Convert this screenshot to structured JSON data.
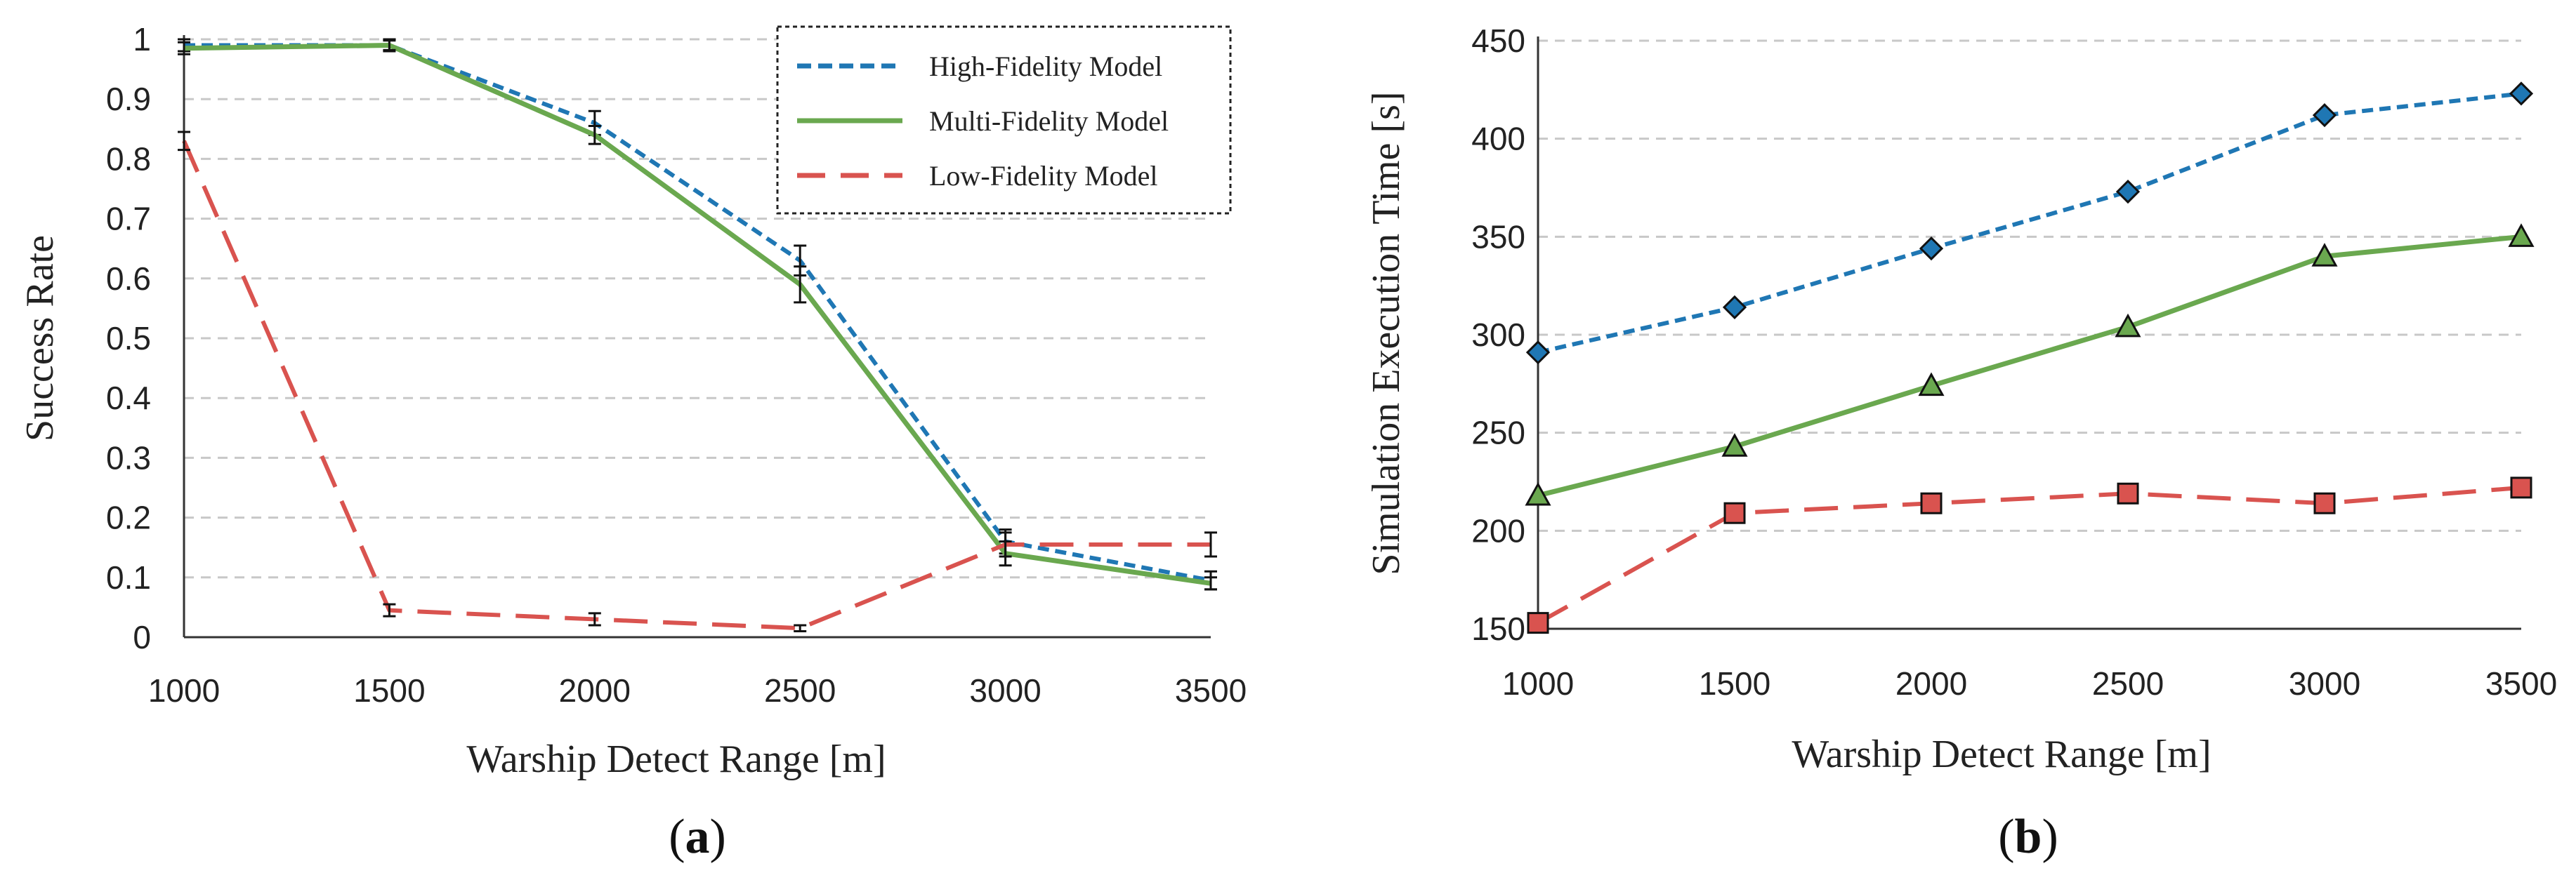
{
  "colors": {
    "high": "#1f77b4",
    "multi": "#6aa84f",
    "low": "#d9534f",
    "grid": "#c8c8c8",
    "axis": "#333333",
    "errorbar": "#111111"
  },
  "chart_data": [
    {
      "type": "line",
      "panel": "a",
      "panel_label": "(a)",
      "xlabel": "Warship Detect Range [m]",
      "ylabel": "Success Rate",
      "x": [
        1000,
        1500,
        2000,
        2500,
        3000,
        3500
      ],
      "xticks": [
        "1000",
        "1500",
        "2000",
        "2500",
        "3000",
        "3500"
      ],
      "xlim": [
        1000,
        3500
      ],
      "ylim": [
        0,
        1
      ],
      "yticks": [
        0,
        0.1,
        0.2,
        0.3,
        0.4,
        0.5,
        0.6,
        0.7,
        0.8,
        0.9,
        1
      ],
      "ytick_labels": [
        "0",
        "0.1",
        "0.2",
        "0.3",
        "0.4",
        "0.5",
        "0.6",
        "0.7",
        "0.8",
        "0.9",
        "1"
      ],
      "grid": true,
      "legend": {
        "position": "top-right",
        "entries": [
          "High-Fidelity Model",
          "Multi-Fidelity Model",
          "Low-Fidelity Model"
        ]
      },
      "series": [
        {
          "name": "High-Fidelity Model",
          "style": "dotted",
          "color_key": "high",
          "marker": "none",
          "values": [
            0.99,
            0.99,
            0.86,
            0.63,
            0.16,
            0.095
          ],
          "error": [
            0.01,
            0.01,
            0.02,
            0.025,
            0.02,
            0.015
          ]
        },
        {
          "name": "Multi-Fidelity Model",
          "style": "solid",
          "color_key": "multi",
          "marker": "none",
          "values": [
            0.985,
            0.99,
            0.84,
            0.59,
            0.14,
            0.09
          ],
          "error": [
            0.01,
            0.008,
            0.015,
            0.03,
            0.02,
            0.01
          ]
        },
        {
          "name": "Low-Fidelity Model",
          "style": "dashed",
          "color_key": "low",
          "marker": "none",
          "values": [
            0.83,
            0.045,
            0.03,
            0.015,
            0.155,
            0.155
          ],
          "error": [
            0.015,
            0.01,
            0.01,
            0.005,
            0.02,
            0.02
          ]
        }
      ]
    },
    {
      "type": "line",
      "panel": "b",
      "panel_label": "(b)",
      "xlabel": "Warship Detect Range [m]",
      "ylabel": "Simulation Execution Time [s]",
      "x": [
        1000,
        1500,
        2000,
        2500,
        3000,
        3500
      ],
      "xticks": [
        "1000",
        "1500",
        "2000",
        "2500",
        "3000",
        "3500"
      ],
      "xlim": [
        1000,
        3500
      ],
      "ylim": [
        150,
        450
      ],
      "yticks": [
        150,
        200,
        250,
        300,
        350,
        400,
        450
      ],
      "ytick_labels": [
        "150",
        "200",
        "250",
        "300",
        "350",
        "400",
        "450"
      ],
      "grid": true,
      "series": [
        {
          "name": "High-Fidelity Model",
          "style": "dotted",
          "color_key": "high",
          "marker": "diamond",
          "values": [
            291,
            314,
            344,
            373,
            412,
            423
          ]
        },
        {
          "name": "Multi-Fidelity Model",
          "style": "solid",
          "color_key": "multi",
          "marker": "triangle",
          "values": [
            218,
            243,
            274,
            304,
            340,
            350
          ]
        },
        {
          "name": "Low-Fidelity Model",
          "style": "dashed",
          "color_key": "low",
          "marker": "square",
          "values": [
            153,
            209,
            214,
            219,
            214,
            222
          ]
        }
      ]
    }
  ]
}
